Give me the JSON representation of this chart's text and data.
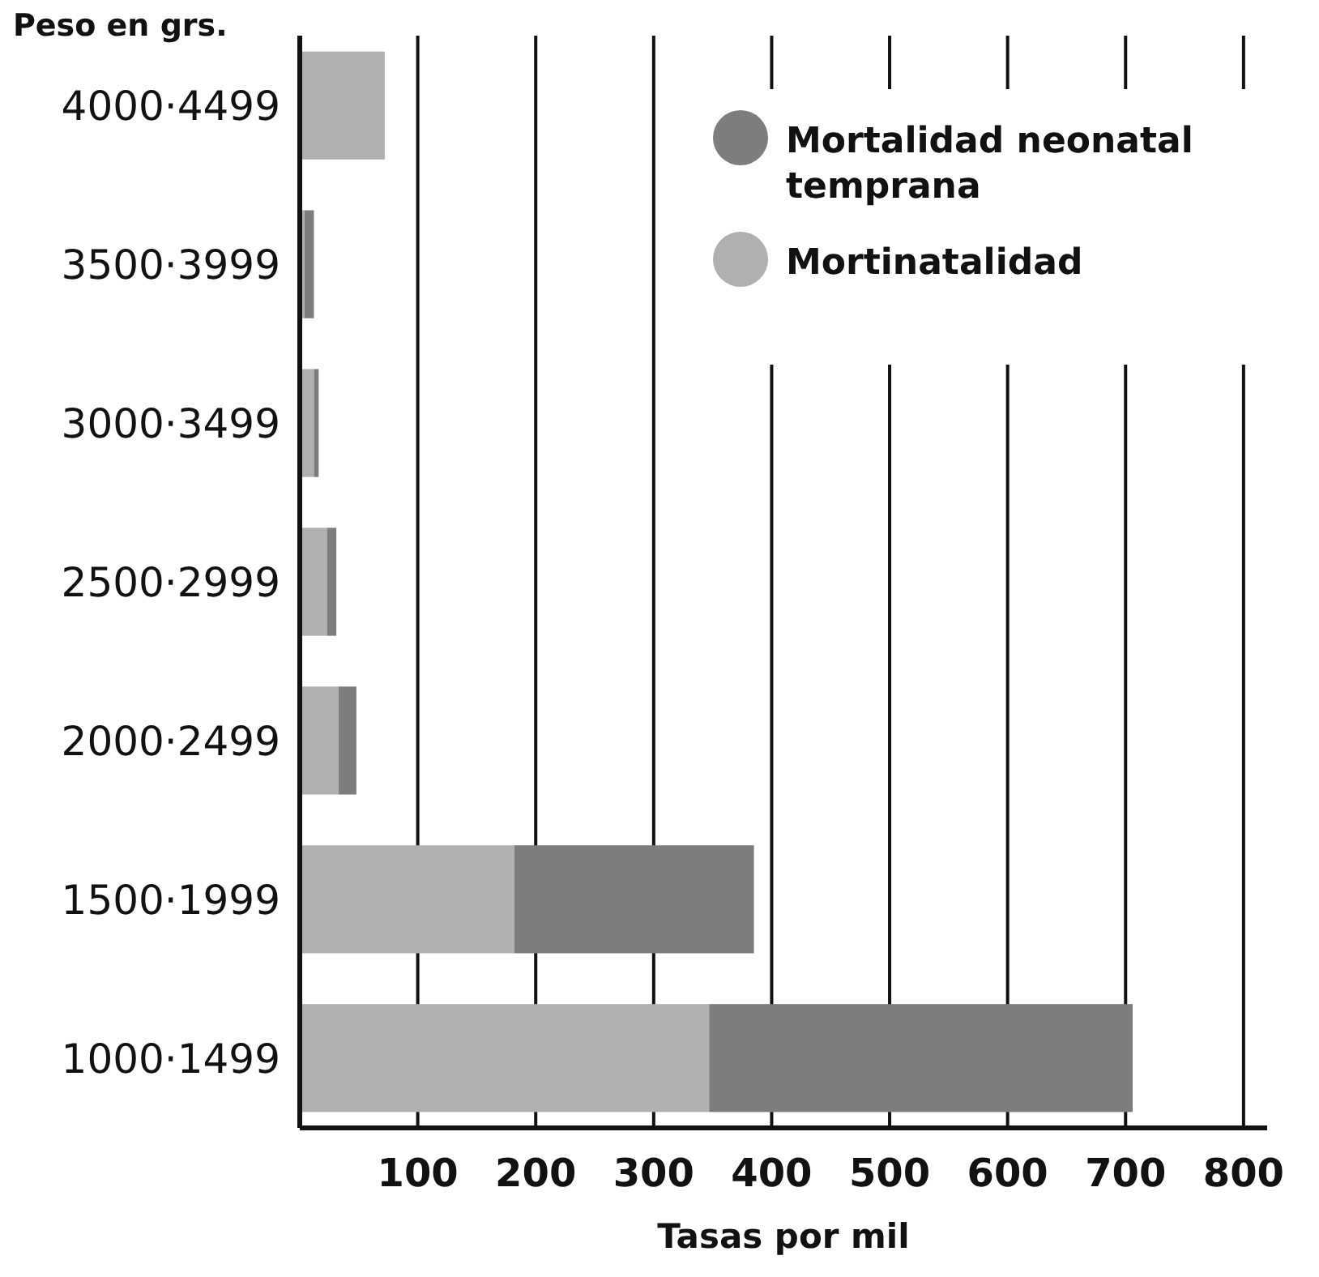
{
  "chart_data": {
    "type": "bar",
    "orientation": "horizontal",
    "stacked": true,
    "xlabel": "Tasas por mil",
    "ylabel": "Peso en grs.",
    "categories": [
      "4000·4499",
      "3500·3999",
      "3000·3499",
      "2500·2999",
      "2000·2499",
      "1500·1999",
      "1000·1499"
    ],
    "series": [
      {
        "name": "Mortinatalidad",
        "color": "#b0b0b0",
        "values": [
          72,
          4,
          12,
          23,
          33,
          182,
          347
        ]
      },
      {
        "name": "Mortalidad neonatal temprana",
        "color": "#7d7d7d",
        "values": [
          0,
          8,
          4,
          8,
          15,
          203,
          359
        ]
      }
    ],
    "xlim": [
      0,
      820
    ],
    "xticks": [
      100,
      200,
      300,
      400,
      500,
      600,
      700,
      800
    ],
    "grid": "x",
    "legend": "top right"
  }
}
